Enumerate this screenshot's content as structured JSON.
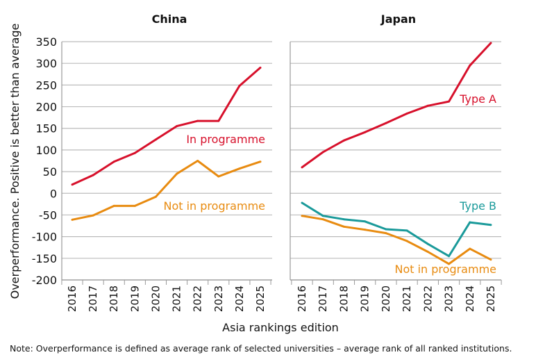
{
  "chart_data": [
    {
      "type": "line",
      "title": "China",
      "x": [
        "2016",
        "2017",
        "2018",
        "2019",
        "2020",
        "2021",
        "2022",
        "2023",
        "2024",
        "2025"
      ],
      "ylim": [
        -200,
        350
      ],
      "yticks": [
        350,
        300,
        250,
        200,
        150,
        100,
        50,
        0,
        -50,
        -100,
        -150,
        -200
      ],
      "grid": true,
      "series": [
        {
          "name": "In programme",
          "color": "#d7102b",
          "values": [
            20,
            42,
            73,
            93,
            124,
            155,
            167,
            167,
            248,
            290
          ]
        },
        {
          "name": "Not in programme",
          "color": "#e88b10",
          "values": [
            -61,
            -51,
            -29,
            -29,
            -8,
            45,
            75,
            39,
            57,
            73
          ]
        }
      ]
    },
    {
      "type": "line",
      "title": "Japan",
      "x": [
        "2016",
        "2017",
        "2018",
        "2019",
        "2020",
        "2021",
        "2022",
        "2023",
        "2024",
        "2025"
      ],
      "ylim": [
        -200,
        350
      ],
      "grid": true,
      "series": [
        {
          "name": "Type A",
          "color": "#d7102b",
          "values": [
            60,
            95,
            122,
            141,
            162,
            184,
            202,
            212,
            295,
            347
          ]
        },
        {
          "name": "Type B",
          "color": "#1a9a9a",
          "values": [
            -22,
            -52,
            -60,
            -65,
            -83,
            -86,
            -117,
            -145,
            -67,
            -73
          ]
        },
        {
          "name": "Not in programme",
          "color": "#e88b10",
          "values": [
            -52,
            -60,
            -77,
            -84,
            -92,
            -110,
            -135,
            -163,
            -128,
            -153
          ]
        }
      ]
    }
  ],
  "ylabel": "Overperformance. Positive is better than average",
  "xlabel": "Asia rankings edition",
  "note": "Note: Overperformance is defined as average rank of selected universities – average rank of all ranked institutions."
}
